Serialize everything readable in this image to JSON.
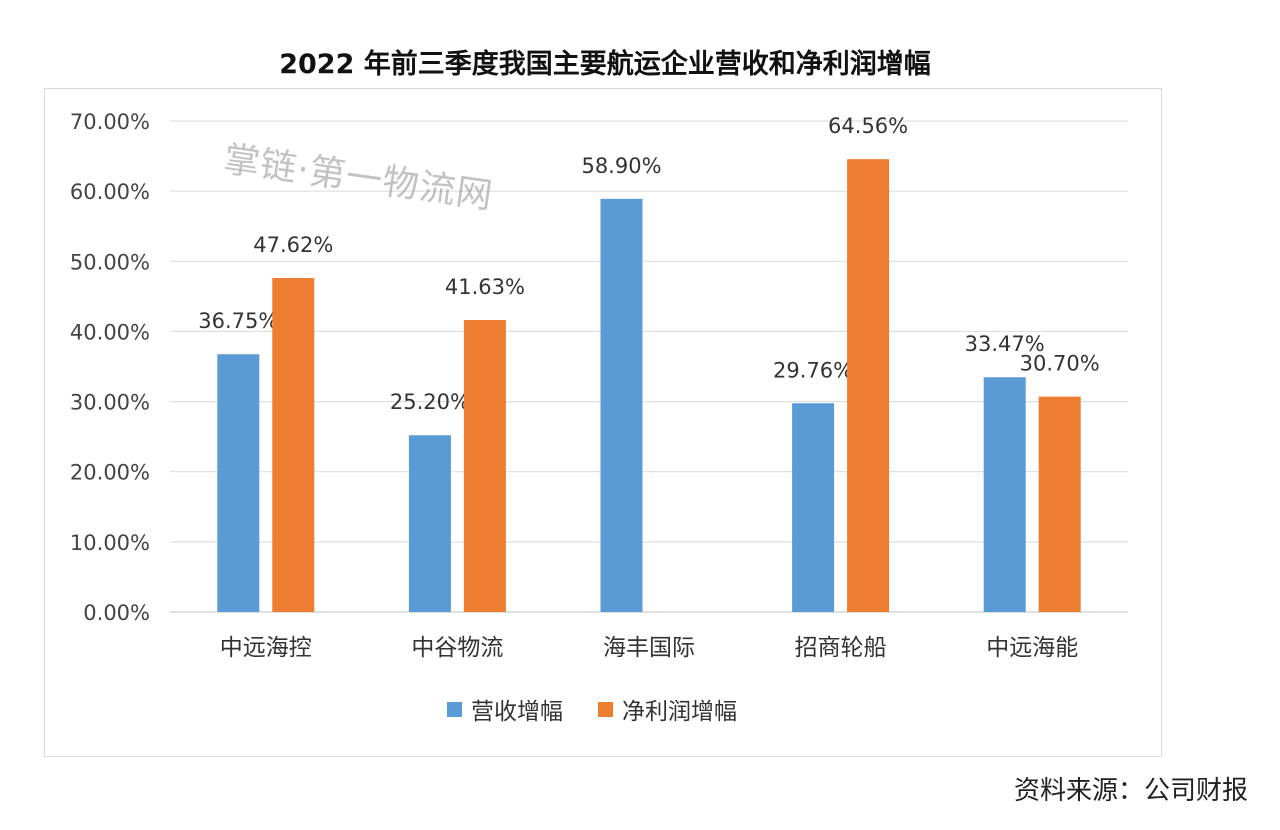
{
  "chart_data": {
    "type": "bar",
    "title": "2022 年前三季度我国主要航运企业营收和净利润增幅",
    "categories": [
      "中远海控",
      "中谷物流",
      "海丰国际",
      "招商轮船",
      "中远海能"
    ],
    "series": [
      {
        "name": "营收增幅",
        "color": "#5b9bd5",
        "values": [
          36.75,
          25.2,
          58.9,
          29.76,
          33.47
        ]
      },
      {
        "name": "净利润增幅",
        "color": "#ed7d31",
        "values": [
          47.62,
          41.63,
          null,
          64.56,
          30.7
        ]
      }
    ],
    "data_labels": [
      [
        "36.75%",
        "25.20%",
        "",
        "29.76%",
        "33.47%"
      ],
      [
        "47.62%",
        "41.63%",
        "",
        "64.56%",
        "30.70%"
      ]
    ],
    "hai_feng_label": "58.90%",
    "yticks": [
      "0.00%",
      "10.00%",
      "20.00%",
      "30.00%",
      "40.00%",
      "50.00%",
      "60.00%",
      "70.00%"
    ],
    "ylim": [
      0,
      70
    ],
    "grid": true,
    "legend": "bottom",
    "xlabel": "",
    "ylabel": ""
  },
  "watermark": "掌链·第一物流网",
  "source": "资料来源：公司财报"
}
